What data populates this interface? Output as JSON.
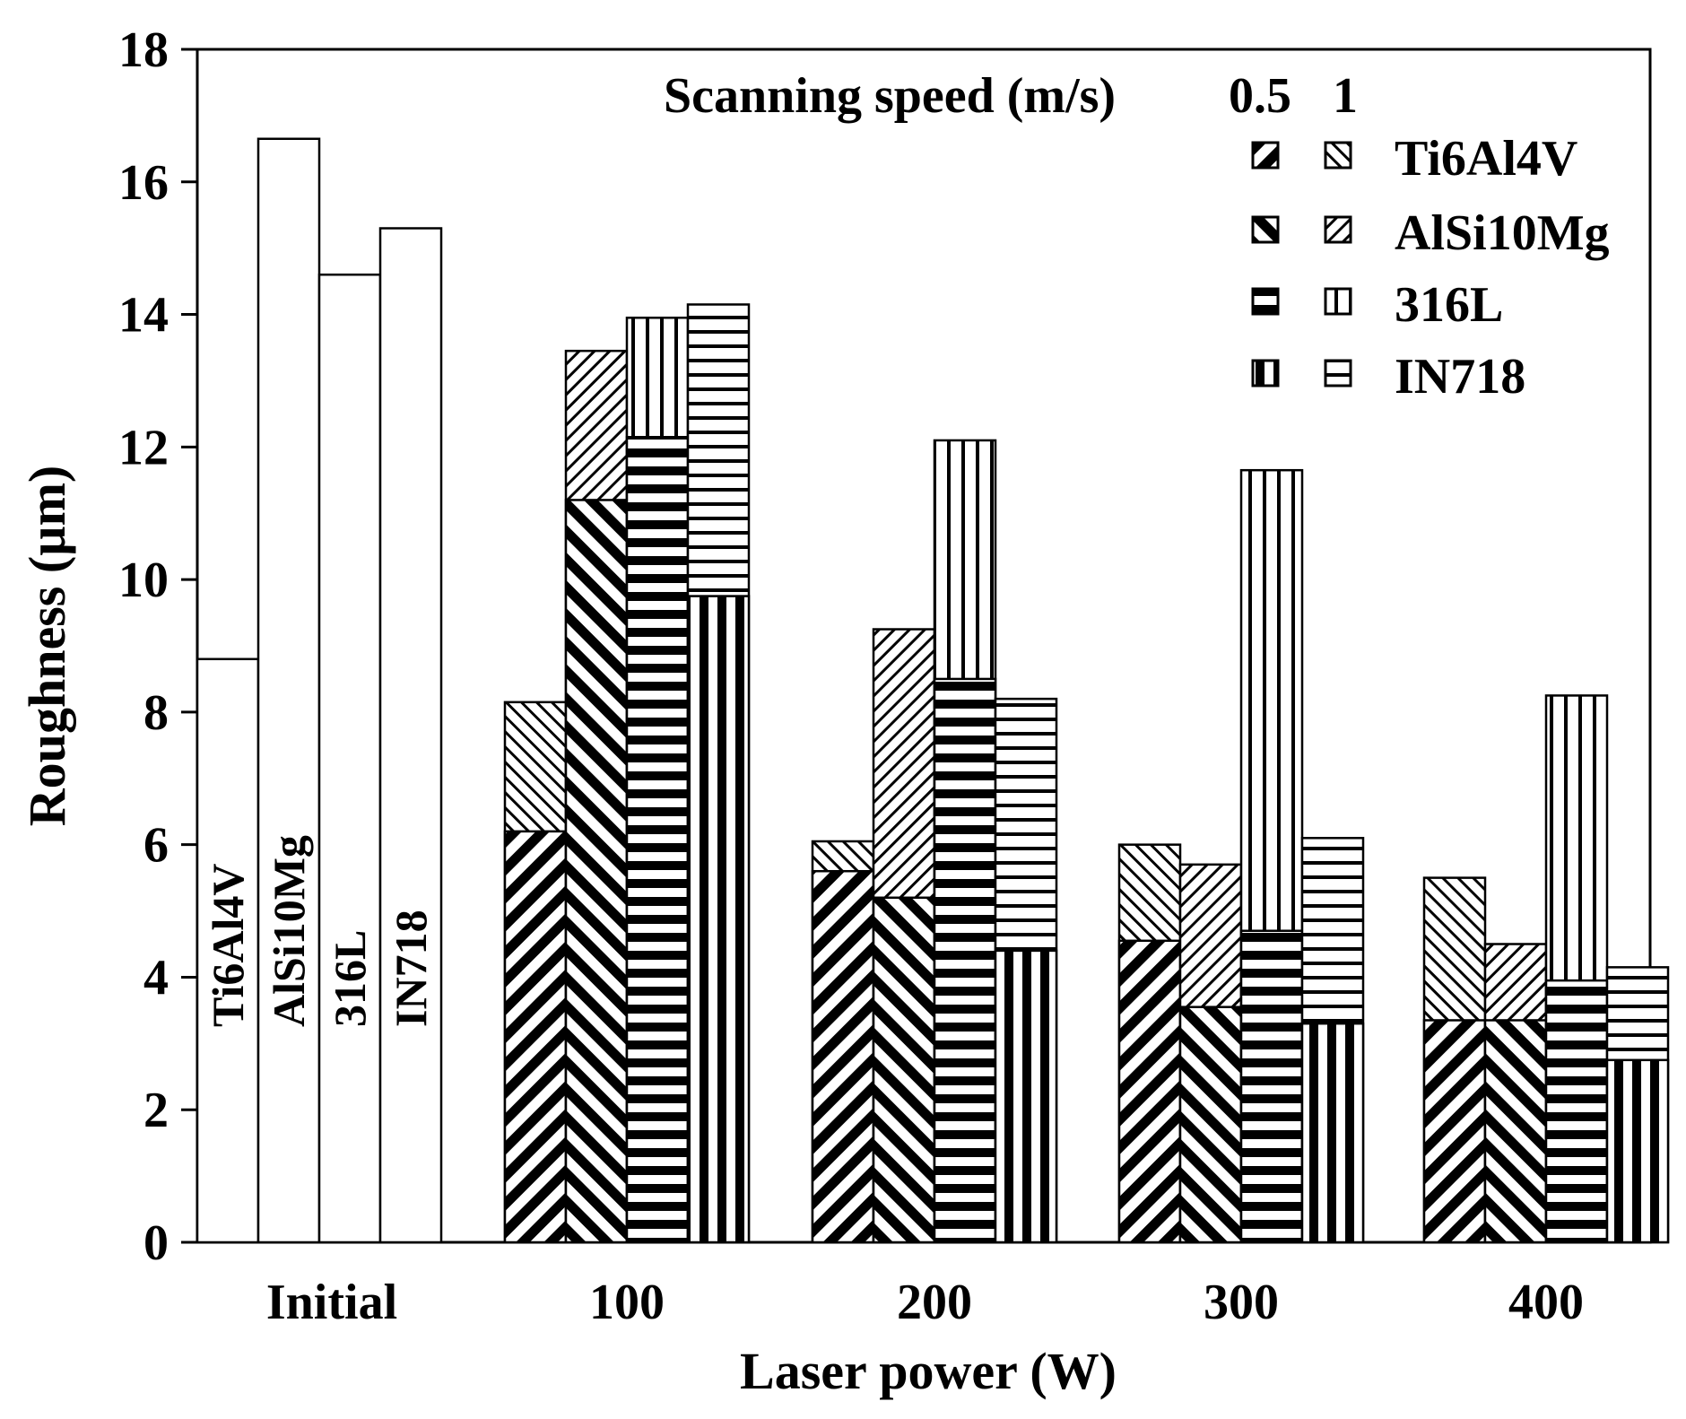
{
  "chart_data": {
    "type": "bar",
    "title": "",
    "xlabel": "Laser power (W)",
    "ylabel": "Roughness (µm)",
    "ylim": [
      0,
      18
    ],
    "yticks": [
      0,
      2,
      4,
      6,
      8,
      10,
      12,
      14,
      16,
      18
    ],
    "categories": [
      "Initial",
      "100",
      "200",
      "300",
      "400"
    ],
    "legend": {
      "title": "Scanning speed (m/s)",
      "speeds": [
        "0.5",
        "1"
      ],
      "materials": [
        "Ti6Al4V",
        "AlSi10Mg",
        "316L",
        "IN718"
      ],
      "placement": "top-right"
    },
    "initial": {
      "labels": [
        "Ti6Al4V",
        "AlSi10Mg",
        "316L",
        "IN718"
      ],
      "values": [
        8.8,
        16.65,
        14.6,
        15.3
      ]
    },
    "series": [
      {
        "name": "Ti6Al4V",
        "speed_0_5": [
          6.2,
          5.6,
          4.55,
          3.35
        ],
        "speed_1": [
          8.15,
          6.05,
          6.0,
          5.5
        ]
      },
      {
        "name": "AlSi10Mg",
        "speed_0_5": [
          11.2,
          5.2,
          3.55,
          3.35
        ],
        "speed_1": [
          13.45,
          9.25,
          5.7,
          4.5
        ]
      },
      {
        "name": "316L",
        "speed_0_5": [
          12.15,
          8.5,
          4.7,
          3.95
        ],
        "speed_1": [
          13.95,
          12.1,
          11.65,
          8.25
        ]
      },
      {
        "name": "IN718",
        "speed_0_5": [
          9.75,
          4.4,
          3.3,
          2.75
        ],
        "speed_1": [
          14.15,
          8.2,
          6.1,
          4.15
        ]
      }
    ]
  }
}
